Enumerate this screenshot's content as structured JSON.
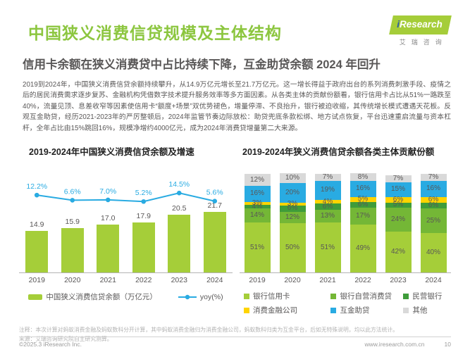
{
  "header": {
    "title": "中国狭义消费信贷规模及主体结构",
    "subtitle": "信用卡余额在狭义消费贷中占比持续下降，互金助贷余额 2024 年回升",
    "logo": {
      "brand_i": "i",
      "brand_rest": "Research",
      "brand_cn": "艾瑞咨询"
    }
  },
  "body": {
    "paragraph": "2019到2024年，中国狭义消费信贷余额持续攀升，从14.9万亿元增长至21.7万亿元。这一增长得益于政府出台的系列消费刺激手段、疫情之后的居民消费需求逐步复苏、金融机构凭借数字技术提升服务效率等多方面因素。从各类主体的贡献份额看，银行信用卡占比从51%一路跌至40%，流量见顶、息差收窄等因素使信用卡“额度+场景”双优势褪色，增量停滞、不良抬升，银行被迫收缩，其传统增长模式遭遇天花板。反观互金助贷，经历2021-2023年的严厉整顿后，2024年监管节奏边际放松：助贷兜底条款松绑、地方试点恢复，平台迅速重启流量与资本杠杆，全年占比由15%跳回16%，规模净增约4000亿元，成为2024年消费贷增量第二大来源。"
  },
  "chart_data": [
    {
      "type": "bar",
      "subtype": "bar+line-combo",
      "title": "2019-2024年中国狭义消费信贷余额及增速",
      "categories": [
        "2019",
        "2020",
        "2021",
        "2022",
        "2023",
        "2024"
      ],
      "bar_series": {
        "name": "中国狭义消费信贷余额（万亿元）",
        "values": [
          14.9,
          15.9,
          17.0,
          17.9,
          20.5,
          21.7
        ],
        "labels": [
          "14.9",
          "15.9",
          "17.0",
          "17.9",
          "20.5",
          "21.7"
        ],
        "color": "#a5ce39"
      },
      "line_series": {
        "name": "yoy(%)",
        "values": [
          12.2,
          6.6,
          7.0,
          5.2,
          14.5,
          5.6
        ],
        "labels": [
          "12.2%",
          "6.6%",
          "7.0%",
          "5.2%",
          "14.5%",
          "5.6%"
        ],
        "color": "#29abe2"
      },
      "grid": false,
      "legend_position": "bottom"
    },
    {
      "type": "bar",
      "subtype": "stacked-100",
      "title": "2019-2024年狭义消费信贷余额各类主体贡献份额",
      "categories": [
        "2019",
        "2020",
        "2021",
        "2022",
        "2023",
        "2024"
      ],
      "unit": "%",
      "series": [
        {
          "name": "银行信用卡",
          "color": "#a5ce39",
          "values": [
            51,
            50,
            51,
            49,
            42,
            40
          ]
        },
        {
          "name": "银行自营消费贷",
          "color": "#74b736",
          "values": [
            14,
            12,
            13,
            17,
            24,
            25
          ]
        },
        {
          "name": "民营银行",
          "color": "#3f9c3a",
          "values": [
            4,
            6,
            6,
            6,
            5,
            6
          ]
        },
        {
          "name": "消费金融公司",
          "color": "#ffd400",
          "values": [
            3,
            3,
            4,
            5,
            6,
            6
          ]
        },
        {
          "name": "互金助贷",
          "color": "#29abe2",
          "values": [
            16,
            20,
            19,
            16,
            15,
            16
          ]
        },
        {
          "name": "其他",
          "color": "#d9d9d9",
          "values": [
            12,
            10,
            7,
            8,
            7,
            7
          ]
        }
      ],
      "grid": false,
      "legend_position": "bottom"
    }
  ],
  "footer": {
    "note": "注释：本次计算对蚂蚁消费金融及蚂蚁数科分开计算，其中蚂蚁消费金融归为消费金融公司，蚂蚁数科归类为互金平台，后如无特殊说明，均以此方法统计。",
    "source": "来源：艾瑞咨询研究院自主研究测算。",
    "copyright": "©2025.3 iResearch Inc.",
    "website": "www.iresearch.com.cn",
    "page_number": "10"
  }
}
